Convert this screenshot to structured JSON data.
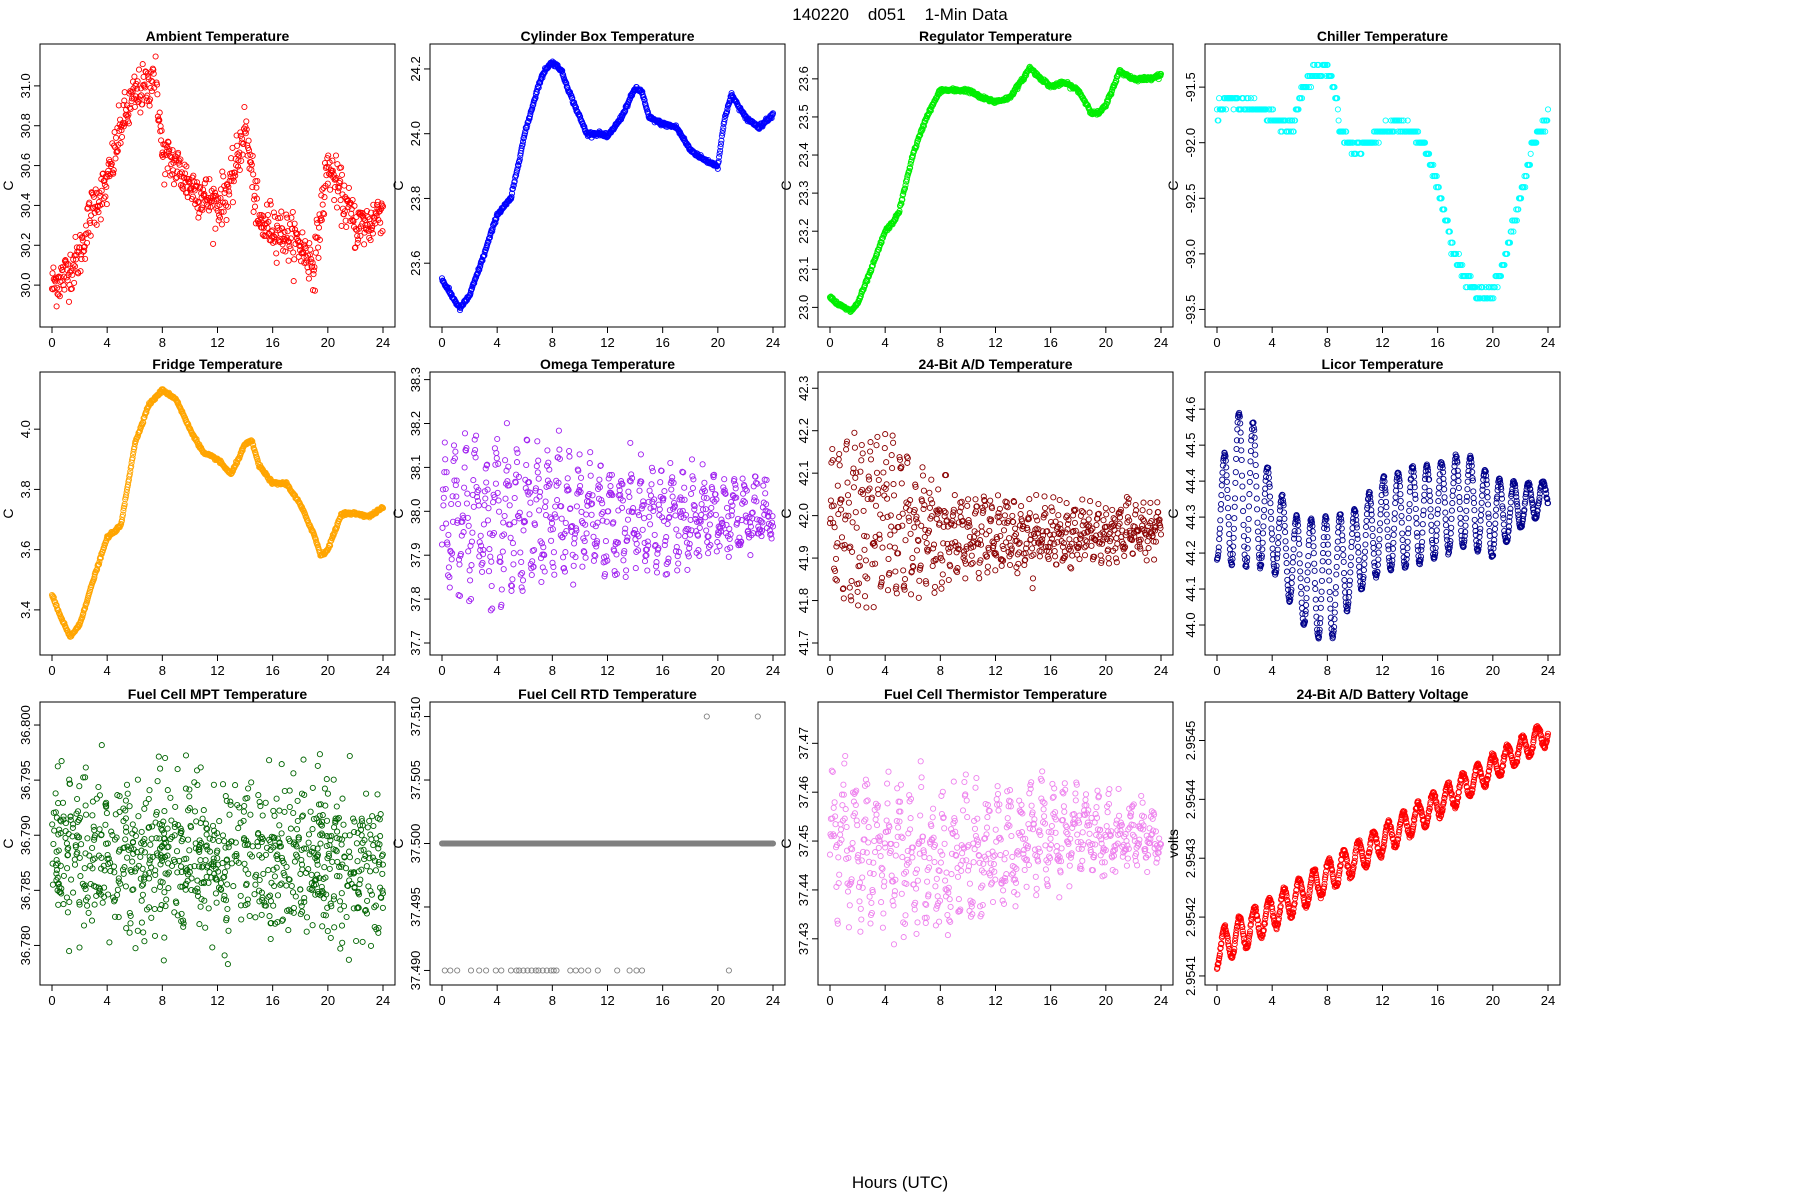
{
  "figure": {
    "title": "140220    d051    1-Min Data",
    "xlabel": "Hours (UTC)"
  },
  "chart_data": [
    {
      "type": "scatter",
      "title": "Ambient Temperature",
      "ylabel": "C",
      "color": "#ff0000",
      "xlim": [
        0,
        24
      ],
      "ylim": [
        29.85,
        31.15
      ],
      "xticks": [
        0,
        4,
        8,
        12,
        16,
        20,
        24
      ],
      "yticks": [
        30.0,
        30.2,
        30.4,
        30.6,
        30.8,
        31.0
      ],
      "ytick_labels": [
        "30.0",
        "30.2",
        "30.4",
        "30.6",
        "30.8",
        "31.0"
      ],
      "noise": 0.06,
      "pattern": "scatter",
      "x": [
        0,
        1,
        2,
        3,
        4,
        5,
        6,
        7,
        7.5,
        8,
        9,
        10,
        11,
        12,
        13,
        14,
        15,
        16,
        17,
        18,
        19,
        20,
        21,
        22,
        23,
        24
      ],
      "y": [
        30.0,
        30.05,
        30.15,
        30.4,
        30.5,
        30.8,
        30.95,
        31.0,
        31.1,
        30.65,
        30.6,
        30.5,
        30.45,
        30.4,
        30.5,
        30.8,
        30.3,
        30.3,
        30.25,
        30.2,
        30.1,
        30.6,
        30.45,
        30.3,
        30.3,
        30.4
      ]
    },
    {
      "type": "scatter",
      "title": "Cylinder Box Temperature",
      "ylabel": "C",
      "color": "#0000ff",
      "xlim": [
        0,
        24
      ],
      "ylim": [
        23.44,
        24.24
      ],
      "xticks": [
        0,
        4,
        8,
        12,
        16,
        20,
        24
      ],
      "yticks": [
        23.6,
        23.8,
        24.0,
        24.2
      ],
      "ytick_labels": [
        "23.6",
        "23.8",
        "24.0",
        "24.2"
      ],
      "noise": 0.005,
      "pattern": "line",
      "x": [
        0,
        0.7,
        1.3,
        2,
        3,
        4,
        5,
        6,
        7,
        7.5,
        8,
        8.6,
        9.5,
        10.5,
        11.5,
        12,
        13,
        14,
        14.5,
        15,
        16,
        17,
        18,
        19,
        20,
        20.5,
        21,
        22,
        23,
        24
      ],
      "y": [
        23.55,
        23.5,
        23.46,
        23.5,
        23.62,
        23.75,
        23.8,
        24.0,
        24.15,
        24.2,
        24.22,
        24.2,
        24.1,
        24.0,
        24.0,
        23.99,
        24.05,
        24.14,
        24.13,
        24.05,
        24.03,
        24.02,
        23.95,
        23.92,
        23.9,
        24.05,
        24.12,
        24.05,
        24.02,
        24.06
      ]
    },
    {
      "type": "scatter",
      "title": "Regulator Temperature",
      "ylabel": "C",
      "color": "#00ee00",
      "xlim": [
        0,
        24
      ],
      "ylim": [
        22.98,
        23.66
      ],
      "xticks": [
        0,
        4,
        8,
        12,
        16,
        20,
        24
      ],
      "yticks": [
        23.0,
        23.1,
        23.2,
        23.3,
        23.4,
        23.5,
        23.6
      ],
      "ytick_labels": [
        "23.0",
        "23.1",
        "23.2",
        "23.3",
        "23.4",
        "23.5",
        "23.6"
      ],
      "noise": 0.004,
      "pattern": "line",
      "x": [
        0,
        0.5,
        1,
        1.5,
        2,
        3,
        4,
        4.5,
        5,
        6,
        7,
        8,
        8.5,
        9,
        10,
        11,
        12,
        13,
        14,
        14.5,
        15,
        16,
        17,
        18,
        19,
        19.5,
        20,
        21,
        22,
        23,
        24
      ],
      "y": [
        23.03,
        23.01,
        23.0,
        22.99,
        23.01,
        23.1,
        23.2,
        23.22,
        23.25,
        23.4,
        23.5,
        23.57,
        23.57,
        23.57,
        23.57,
        23.55,
        23.54,
        23.55,
        23.6,
        23.63,
        23.61,
        23.58,
        23.59,
        23.57,
        23.51,
        23.51,
        23.53,
        23.62,
        23.6,
        23.6,
        23.61
      ]
    },
    {
      "type": "scatter",
      "title": "Chiller Temperature",
      "ylabel": "C",
      "color": "#00ffff",
      "xlim": [
        0,
        24
      ],
      "ylim": [
        -93.55,
        -91.22
      ],
      "xticks": [
        0,
        4,
        8,
        12,
        16,
        20,
        24
      ],
      "yticks": [
        -91.5,
        -92.0,
        -92.5,
        -93.0,
        -93.5
      ],
      "ytick_labels": [
        "-91.5",
        "-92.0",
        "-92.5",
        "-93.0",
        "-93.5"
      ],
      "noise": 0.03,
      "pattern": "steps",
      "step": 0.1,
      "x": [
        0,
        1,
        2,
        3,
        4,
        5,
        5.5,
        6,
        7,
        8,
        8.5,
        9,
        10,
        11,
        12,
        13,
        14,
        15,
        16,
        17,
        18,
        19,
        20,
        21,
        22,
        23,
        24
      ],
      "y": [
        -91.7,
        -91.6,
        -91.65,
        -91.7,
        -91.75,
        -91.85,
        -91.85,
        -91.6,
        -91.35,
        -91.35,
        -91.5,
        -91.9,
        -92.05,
        -92.0,
        -91.9,
        -91.85,
        -91.9,
        -92.0,
        -92.4,
        -92.9,
        -93.25,
        -93.35,
        -93.35,
        -93.0,
        -92.5,
        -92.0,
        -91.75
      ]
    },
    {
      "type": "scatter",
      "title": "Fridge Temperature",
      "ylabel": "C",
      "color": "#ffa500",
      "xlim": [
        0,
        24
      ],
      "ylim": [
        3.29,
        4.15
      ],
      "xticks": [
        0,
        4,
        8,
        12,
        16,
        20,
        24
      ],
      "yticks": [
        3.4,
        3.6,
        3.8,
        4.0
      ],
      "ytick_labels": [
        "3.4",
        "3.6",
        "3.8",
        "4.0"
      ],
      "noise": 0.004,
      "pattern": "line",
      "x": [
        0,
        0.6,
        1.3,
        2,
        3,
        4,
        4.5,
        5,
        6,
        7,
        8,
        9,
        10,
        11,
        12,
        13,
        14,
        14.5,
        15,
        16,
        17,
        18,
        19,
        19.5,
        20,
        21,
        22,
        23,
        24
      ],
      "y": [
        3.45,
        3.38,
        3.31,
        3.35,
        3.5,
        3.64,
        3.66,
        3.68,
        3.95,
        4.08,
        4.13,
        4.1,
        4.0,
        3.92,
        3.9,
        3.85,
        3.95,
        3.96,
        3.88,
        3.82,
        3.82,
        3.75,
        3.65,
        3.58,
        3.6,
        3.72,
        3.72,
        3.71,
        3.74
      ]
    },
    {
      "type": "scatter",
      "title": "Omega Temperature",
      "ylabel": "C",
      "color": "#a020f0",
      "xlim": [
        0,
        24
      ],
      "ylim": [
        37.7,
        38.29
      ],
      "xticks": [
        0,
        4,
        8,
        12,
        16,
        20,
        24
      ],
      "yticks": [
        37.7,
        37.8,
        37.9,
        38.0,
        38.1,
        38.2,
        38.3
      ],
      "ytick_labels": [
        "37.7",
        "37.8",
        "37.9",
        "38.0",
        "38.1",
        "38.2",
        "38.3"
      ],
      "pattern": "oscillate",
      "period": 0.75,
      "cycles_scatter": 0.02,
      "x": [
        0,
        4,
        8,
        12,
        16,
        20,
        24
      ],
      "center": [
        38.0,
        37.99,
        38.0,
        37.98,
        37.98,
        37.99,
        38.0
      ],
      "amp": [
        0.26,
        0.26,
        0.22,
        0.18,
        0.16,
        0.13,
        0.08
      ]
    },
    {
      "type": "scatter",
      "title": "24-Bit A/D Temperature",
      "ylabel": "C",
      "color": "#8b0000",
      "xlim": [
        0,
        24
      ],
      "ylim": [
        41.7,
        42.31
      ],
      "xticks": [
        0,
        4,
        8,
        12,
        16,
        20,
        24
      ],
      "yticks": [
        41.7,
        41.8,
        41.9,
        42.0,
        42.1,
        42.2,
        42.3
      ],
      "ytick_labels": [
        "41.7",
        "41.8",
        "41.9",
        "42.0",
        "42.1",
        "42.2",
        "42.3"
      ],
      "pattern": "oscillate",
      "period": 0.55,
      "cycles_scatter": 0.02,
      "x": [
        0,
        4,
        8,
        12,
        16,
        20,
        24
      ],
      "center": [
        41.98,
        42.0,
        41.95,
        41.96,
        41.95,
        41.96,
        41.97
      ],
      "amp": [
        0.24,
        0.28,
        0.16,
        0.11,
        0.1,
        0.08,
        0.05
      ]
    },
    {
      "type": "scatter",
      "title": "Licor Temperature",
      "ylabel": "C",
      "color": "#00008b",
      "xlim": [
        0,
        24
      ],
      "ylim": [
        43.95,
        44.67
      ],
      "xticks": [
        0,
        4,
        8,
        12,
        16,
        20,
        24
      ],
      "yticks": [
        44.0,
        44.1,
        44.2,
        44.3,
        44.4,
        44.5,
        44.6
      ],
      "ytick_labels": [
        "44.0",
        "44.1",
        "44.2",
        "44.3",
        "44.4",
        "44.5",
        "44.6"
      ],
      "pattern": "sine",
      "period": 1.05,
      "cycles_scatter": 0.003,
      "x": [
        0,
        2,
        4,
        6,
        8,
        10,
        12,
        14,
        16,
        18,
        20,
        22,
        24
      ],
      "center": [
        44.3,
        44.4,
        44.28,
        44.15,
        44.12,
        44.2,
        44.28,
        44.3,
        44.32,
        44.35,
        44.3,
        44.33,
        44.36
      ],
      "amp": [
        0.12,
        0.24,
        0.12,
        0.14,
        0.18,
        0.12,
        0.13,
        0.14,
        0.13,
        0.13,
        0.11,
        0.06,
        0.04
      ]
    },
    {
      "type": "scatter",
      "title": "Fuel Cell MPT Temperature",
      "ylabel": "C",
      "color": "#006400",
      "xlim": [
        0,
        24
      ],
      "ylim": [
        36.7775,
        36.801
      ],
      "xticks": [
        0,
        4,
        8,
        12,
        16,
        20,
        24
      ],
      "yticks": [
        36.78,
        36.785,
        36.79,
        36.795,
        36.8
      ],
      "ytick_labels": [
        "36.780",
        "36.785",
        "36.790",
        "36.795",
        "36.800"
      ],
      "pattern": "noise",
      "noise": 0.0035,
      "n": 900,
      "x": [
        0,
        24
      ],
      "y": [
        36.7885,
        36.7875
      ]
    },
    {
      "type": "scatter",
      "title": "Fuel Cell RTD Temperature",
      "ylabel": "C",
      "color": "#808080",
      "xlim": [
        0,
        24
      ],
      "ylim": [
        37.4898,
        37.5102
      ],
      "xticks": [
        0,
        4,
        8,
        12,
        16,
        20,
        24
      ],
      "yticks": [
        37.49,
        37.495,
        37.5,
        37.505,
        37.51
      ],
      "ytick_labels": [
        "37.490",
        "37.495",
        "37.500",
        "37.505",
        "37.510"
      ],
      "pattern": "rtd",
      "x": [
        0,
        24
      ],
      "y": [
        37.5,
        37.5
      ],
      "low_x": [
        0.2,
        0.6,
        1.1,
        2.1,
        2.7,
        3.2,
        3.9,
        4.3,
        5.0,
        5.4,
        5.6,
        5.9,
        6.2,
        6.5,
        6.8,
        7.0,
        7.3,
        7.6,
        7.9,
        8.1,
        8.3,
        9.3,
        9.7,
        10.1,
        10.6,
        11.3,
        12.7,
        13.6,
        14.1,
        14.5,
        20.8
      ],
      "high_x": [
        19.2,
        22.9
      ]
    },
    {
      "type": "scatter",
      "title": "Fuel Cell Thermistor Temperature",
      "ylabel": "C",
      "color": "#ee82ee",
      "xlim": [
        0,
        24
      ],
      "ylim": [
        37.423,
        37.476
      ],
      "xticks": [
        0,
        4,
        8,
        12,
        16,
        20,
        24
      ],
      "yticks": [
        37.43,
        37.44,
        37.45,
        37.46,
        37.47
      ],
      "ytick_labels": [
        "37.43",
        "37.44",
        "37.45",
        "37.46",
        "37.47"
      ],
      "pattern": "oscillate",
      "period": 0.8,
      "cycles_scatter": 0.002,
      "x": [
        0,
        4,
        8,
        12,
        16,
        20,
        24
      ],
      "center": [
        37.45,
        37.448,
        37.445,
        37.448,
        37.452,
        37.452,
        37.45
      ],
      "amp": [
        0.022,
        0.022,
        0.02,
        0.016,
        0.014,
        0.01,
        0.006
      ]
    },
    {
      "type": "scatter",
      "title": "24-Bit A/D Battery Voltage",
      "ylabel": "volts",
      "color": "#ff0000",
      "xlim": [
        0,
        24
      ],
      "ylim": [
        2.954105,
        2.954545
      ],
      "xticks": [
        0,
        4,
        8,
        12,
        16,
        20,
        24
      ],
      "yticks": [
        2.9541,
        2.9542,
        2.9543,
        2.9544,
        2.9545
      ],
      "ytick_labels": [
        "2.9541",
        "2.9542",
        "2.9543",
        "2.9544",
        "2.9545"
      ],
      "pattern": "sine",
      "period": 1.08,
      "cycles_scatter": 2e-06,
      "x": [
        0,
        24
      ],
      "center": [
        2.954145,
        2.954515
      ],
      "amp": [
        3e-05,
        2e-05
      ]
    }
  ]
}
